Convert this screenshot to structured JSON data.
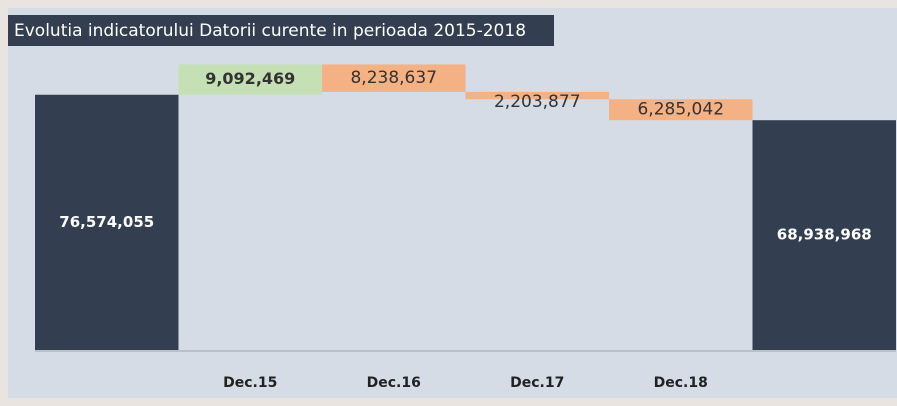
{
  "chart_data": {
    "type": "waterfall",
    "title": "Evolutia indicatorului Datorii curente in perioada 2015-2018",
    "categories": [
      null,
      "Dec.15",
      "Dec.16",
      "Dec.17",
      "Dec.18",
      null
    ],
    "values": [
      76574055,
      9092469,
      -8238637,
      -2203877,
      -6285042,
      68938968
    ],
    "value_labels": [
      "76,574,055",
      "9,092,469",
      "8,238,637",
      "2,203,877",
      "6,285,042",
      "68,938,968"
    ],
    "measures": [
      "total",
      "relative",
      "relative",
      "relative",
      "relative",
      "total"
    ],
    "colors": {
      "total": "#333f50",
      "increase": "#c5e0b4",
      "decrease": "#f4b183"
    },
    "ylim": [
      0,
      90000000
    ]
  }
}
